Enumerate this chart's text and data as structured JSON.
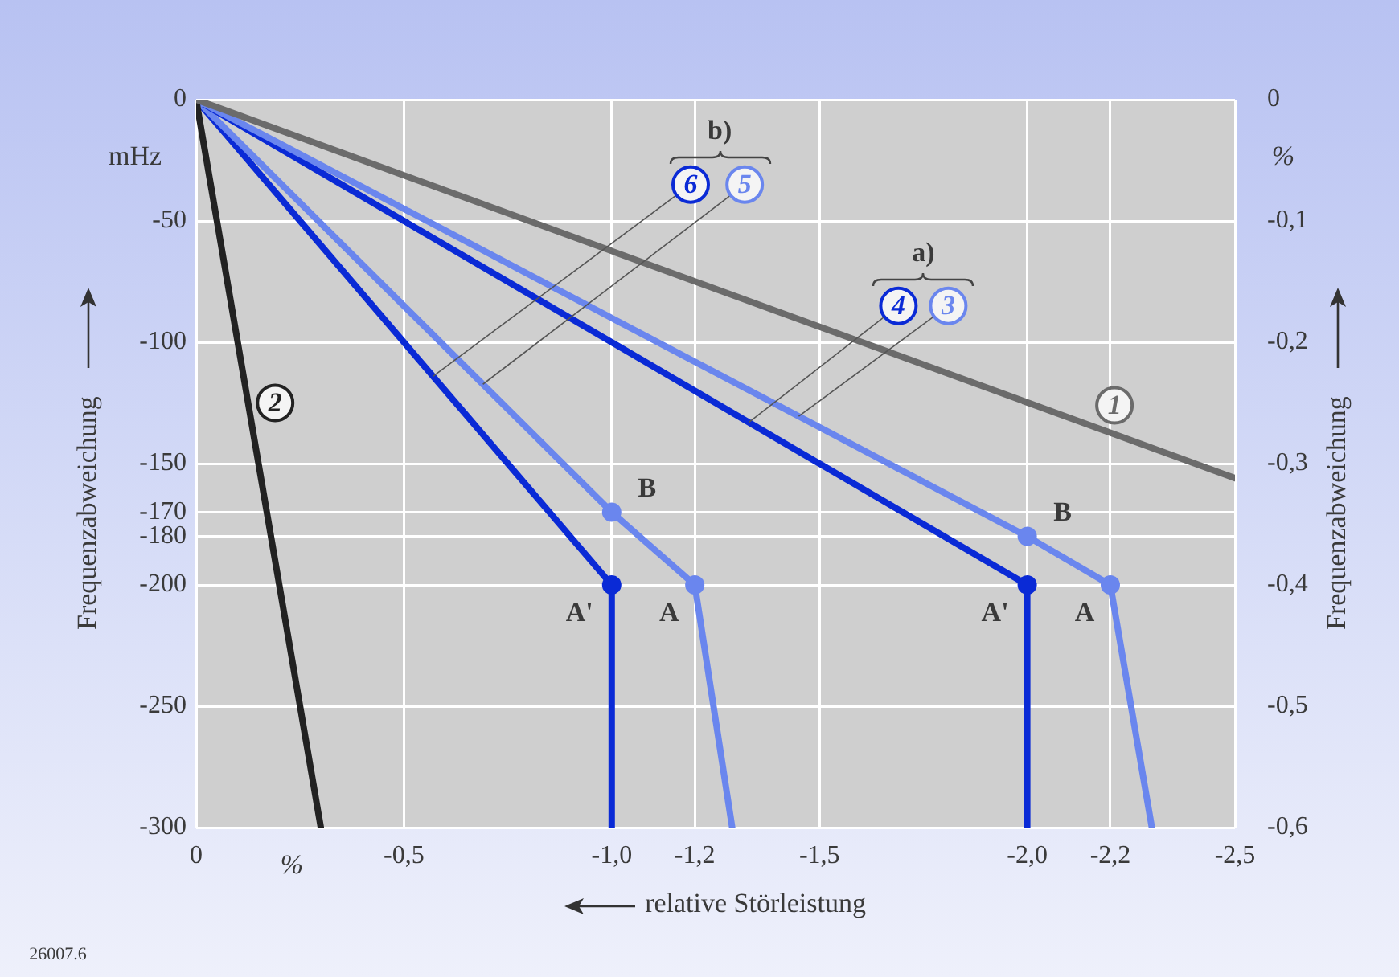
{
  "chart_data": {
    "type": "line",
    "xlabel": "relative Störleistung",
    "ylabel": "Frequenzabweichung",
    "y2label": "Frequenzabweichung",
    "xlim": [
      0,
      -2.5
    ],
    "xticks": [
      0,
      {
        "value": -0.5,
        "label": "-0,5"
      },
      {
        "value": -1,
        "label": "-1,0"
      },
      {
        "value": -1.2,
        "label": "-1,2"
      },
      {
        "value": -1.5,
        "label": "-1,5"
      },
      {
        "value": -2,
        "label": "-2,0"
      },
      {
        "value": -2.2,
        "label": "-2,2"
      },
      {
        "value": -2.5,
        "label": "-2,5"
      }
    ],
    "ylim": [
      -300,
      0
    ],
    "yticks": [
      0,
      -50,
      -100,
      -150,
      -170,
      -180,
      -200,
      -250,
      -300
    ],
    "y2lim": [
      -0.6,
      0
    ],
    "y2ticks": [
      0,
      {
        "value": -0.1,
        "label": "-0,1"
      },
      {
        "value": -0.2,
        "label": "-0,2"
      },
      {
        "value": -0.3,
        "label": "-0,3"
      },
      {
        "value": -0.4,
        "label": "-0,4"
      },
      {
        "value": -0.5,
        "label": "-0,5"
      },
      {
        "value": -0.6,
        "label": "-0,6"
      }
    ],
    "grid": true,
    "legend": false,
    "line_style": "solid",
    "series": [
      {
        "name": "1",
        "color": "#6b6b6b",
        "marker": "none",
        "x": [
          0,
          -2.5
        ],
        "values": [
          0,
          -156
        ]
      },
      {
        "name": "2",
        "color": "#222222",
        "marker": "none",
        "x": [
          0,
          -0.3
        ],
        "values": [
          0,
          -300
        ]
      },
      {
        "name": "3",
        "color": "#6a86ee",
        "marker": "circle",
        "x": [
          0,
          -2,
          -2.2,
          -2.3
        ],
        "values": [
          0,
          -180,
          -200,
          -300
        ]
      },
      {
        "name": "4",
        "color": "#0a2ad6",
        "marker": "circle",
        "x": [
          0,
          -2,
          -2
        ],
        "values": [
          0,
          -200,
          -300
        ]
      },
      {
        "name": "5",
        "color": "#6a86ee",
        "marker": "circle",
        "x": [
          0,
          -1,
          -1.2,
          -1.29
        ],
        "values": [
          0,
          -170,
          -200,
          -300
        ]
      },
      {
        "name": "6",
        "color": "#0a2ad6",
        "marker": "circle",
        "x": [
          0,
          -1,
          -1
        ],
        "values": [
          0,
          -200,
          -300
        ]
      }
    ],
    "annotations": [
      "mHz",
      "%",
      "%",
      "b)",
      "a)",
      "26007.6",
      {
        "text": "B",
        "x": -1,
        "y": -170
      },
      {
        "text": "A'",
        "x": -1,
        "y": -200
      },
      {
        "text": "A",
        "x": -1.2,
        "y": -200
      },
      {
        "text": "B",
        "x": -2,
        "y": -180
      },
      {
        "text": "A'",
        "x": -2,
        "y": -200
      },
      {
        "text": "A",
        "x": -2.2,
        "y": -200
      }
    ]
  }
}
